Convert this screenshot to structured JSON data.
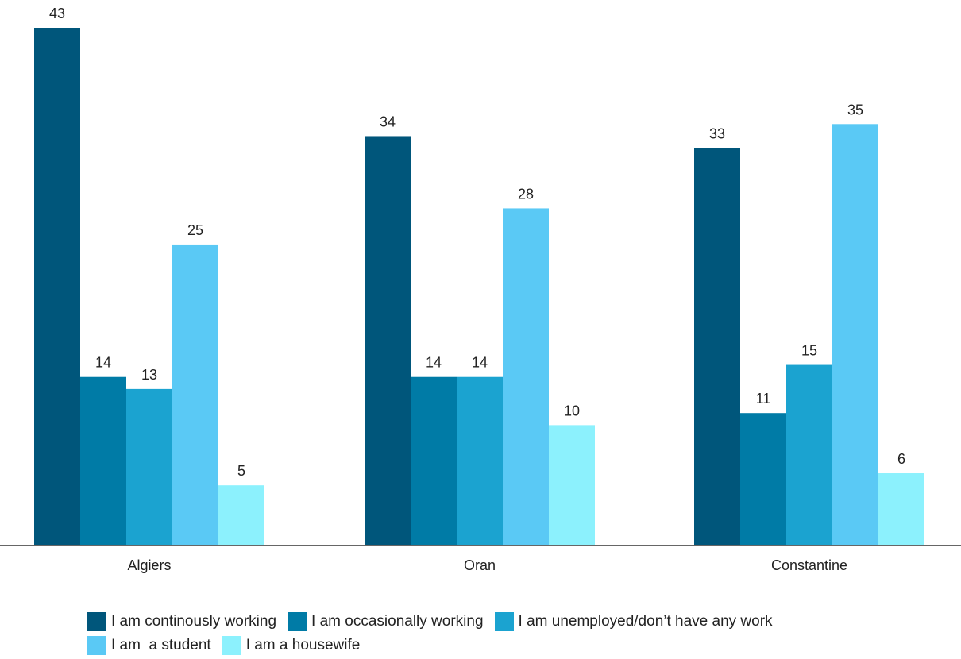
{
  "chart_data": {
    "type": "bar",
    "categories": [
      "Algiers",
      "Oran",
      "Constantine"
    ],
    "series": [
      {
        "name": "I am continously working",
        "color": "#00567b",
        "values": [
          43,
          34,
          33
        ]
      },
      {
        "name": "I am occasionally working",
        "color": "#007ba6",
        "values": [
          14,
          14,
          11
        ]
      },
      {
        "name": "I am unemployed/don’t have any work",
        "color": "#1ba3d0",
        "values": [
          13,
          14,
          15
        ]
      },
      {
        "name": "I am  a student",
        "color": "#5ac9f5",
        "values": [
          25,
          28,
          35
        ]
      },
      {
        "name": "I am a housewife",
        "color": "#8cf1fd",
        "values": [
          5,
          10,
          6
        ]
      }
    ],
    "ylim": [
      0,
      43
    ],
    "grid": false,
    "data_labels": true,
    "legend_position": "bottom"
  }
}
